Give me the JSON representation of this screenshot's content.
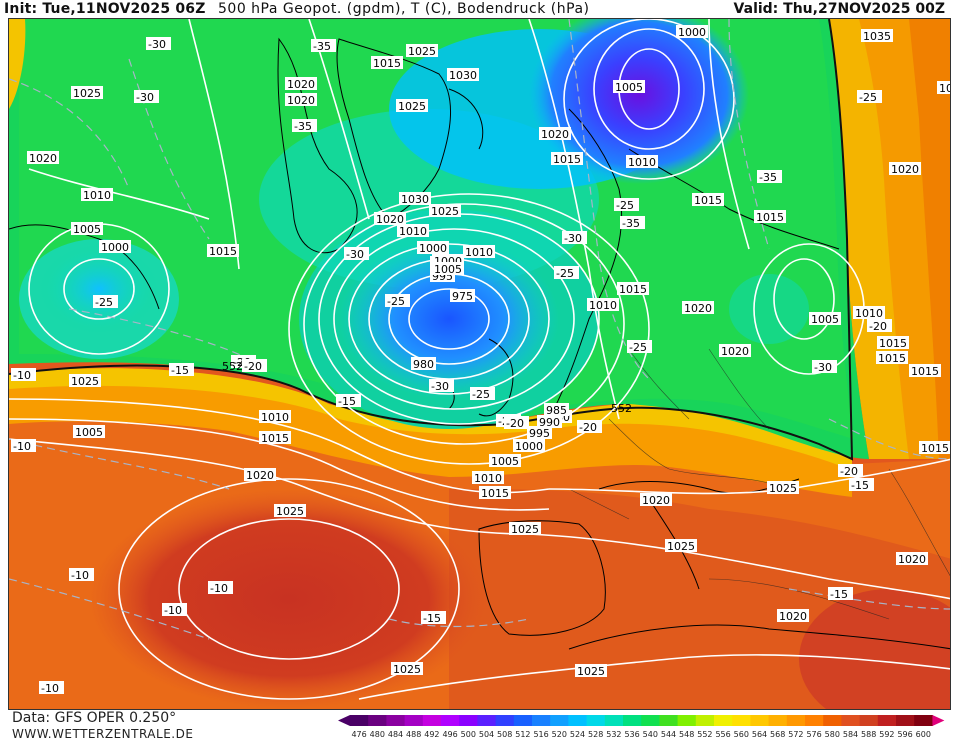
{
  "header": {
    "init": "Init: Tue,11NOV2025 06Z",
    "title": "500 hPa Geopot. (gpdm), T (C), Bodendruck (hPa)",
    "valid": "Valid: Thu,27NOV2025 00Z"
  },
  "footer": {
    "source": "Data: GFS OPER 0.250°",
    "website": "WWW.WETTERZENTRALE.DE"
  },
  "legend": {
    "ticks": [
      "476",
      "480",
      "484",
      "488",
      "492",
      "496",
      "500",
      "504",
      "508",
      "512",
      "516",
      "520",
      "524",
      "528",
      "532",
      "536",
      "540",
      "544",
      "548",
      "552",
      "556",
      "560",
      "564",
      "568",
      "572",
      "576",
      "580",
      "584",
      "588",
      "592",
      "596",
      "600"
    ],
    "colors": [
      "#4a0066",
      "#6a0080",
      "#8a00a0",
      "#a400c4",
      "#c400e0",
      "#b000ff",
      "#8a00ff",
      "#5a20ff",
      "#3040ff",
      "#1860ff",
      "#1880ff",
      "#10a0ff",
      "#00c0ff",
      "#00d8e8",
      "#00e0b8",
      "#00e080",
      "#10e050",
      "#40e020",
      "#80f000",
      "#c0f000",
      "#f0f000",
      "#ffe000",
      "#ffc800",
      "#ffb000",
      "#ff9800",
      "#ff8000",
      "#f06000",
      "#e05020",
      "#d04020",
      "#c02020",
      "#a01018",
      "#800010",
      "#e0007a"
    ]
  },
  "map_labels": {
    "pressure": [
      {
        "t": "1000"
      },
      {
        "t": "1025"
      },
      {
        "t": "1020"
      },
      {
        "t": "1015"
      },
      {
        "t": "1025"
      },
      {
        "t": "1030"
      },
      {
        "t": "1020"
      },
      {
        "t": "1025"
      },
      {
        "t": "1005"
      },
      {
        "t": "1020"
      },
      {
        "t": "1015"
      },
      {
        "t": "1010"
      },
      {
        "t": "1035"
      },
      {
        "t": "1025"
      },
      {
        "t": "1020"
      },
      {
        "t": "1015"
      },
      {
        "t": "1015"
      },
      {
        "t": "1025"
      },
      {
        "t": "1020"
      },
      {
        "t": "1010"
      },
      {
        "t": "1030"
      },
      {
        "t": "1020"
      },
      {
        "t": "1010"
      },
      {
        "t": "1005"
      },
      {
        "t": "1025"
      },
      {
        "t": "1010"
      },
      {
        "t": "1005"
      },
      {
        "t": "1000"
      },
      {
        "t": "1015"
      },
      {
        "t": "1000"
      },
      {
        "t": "990"
      },
      {
        "t": "995"
      },
      {
        "t": "975"
      },
      {
        "t": "980"
      },
      {
        "t": "1010"
      },
      {
        "t": "1015"
      },
      {
        "t": "1020"
      },
      {
        "t": "1005"
      },
      {
        "t": "1010"
      },
      {
        "t": "1015"
      },
      {
        "t": "1020"
      },
      {
        "t": "1015"
      },
      {
        "t": "1000"
      },
      {
        "t": "1005"
      },
      {
        "t": "1010"
      },
      {
        "t": "1015"
      },
      {
        "t": "1020"
      },
      {
        "t": "1025"
      },
      {
        "t": "980"
      },
      {
        "t": "985"
      },
      {
        "t": "990"
      },
      {
        "t": "995"
      },
      {
        "t": "1000"
      },
      {
        "t": "1005"
      },
      {
        "t": "1010"
      },
      {
        "t": "1015"
      },
      {
        "t": "1020"
      },
      {
        "t": "1025"
      },
      {
        "t": "1020"
      },
      {
        "t": "1025"
      },
      {
        "t": "1025"
      },
      {
        "t": "1020"
      },
      {
        "t": "1025"
      },
      {
        "t": "1025"
      },
      {
        "t": "1015"
      },
      {
        "t": "1015"
      }
    ],
    "temperature": [
      {
        "t": "-30"
      },
      {
        "t": "-30"
      },
      {
        "t": "-35"
      },
      {
        "t": "-35"
      },
      {
        "t": "-30"
      },
      {
        "t": "-25"
      },
      {
        "t": "-25"
      },
      {
        "t": "-30"
      },
      {
        "t": "-25"
      },
      {
        "t": "-30"
      },
      {
        "t": "-25"
      },
      {
        "t": "-20"
      },
      {
        "t": "-35"
      },
      {
        "t": "-35"
      },
      {
        "t": "-25"
      },
      {
        "t": "-20"
      },
      {
        "t": "-30"
      },
      {
        "t": "-20"
      },
      {
        "t": "-15"
      },
      {
        "t": "-20"
      },
      {
        "t": "-15"
      },
      {
        "t": "-25"
      },
      {
        "t": "-20"
      },
      {
        "t": "-15"
      },
      {
        "t": "-10"
      },
      {
        "t": "-10"
      },
      {
        "t": "-10"
      },
      {
        "t": "-10"
      },
      {
        "t": "-15"
      },
      {
        "t": "-10"
      },
      {
        "t": "-15"
      },
      {
        "t": "-25"
      },
      {
        "t": "-20"
      },
      {
        "t": "-20"
      },
      {
        "t": "-10"
      }
    ],
    "geopot": [
      {
        "t": "552"
      },
      {
        "t": "552"
      }
    ]
  }
}
